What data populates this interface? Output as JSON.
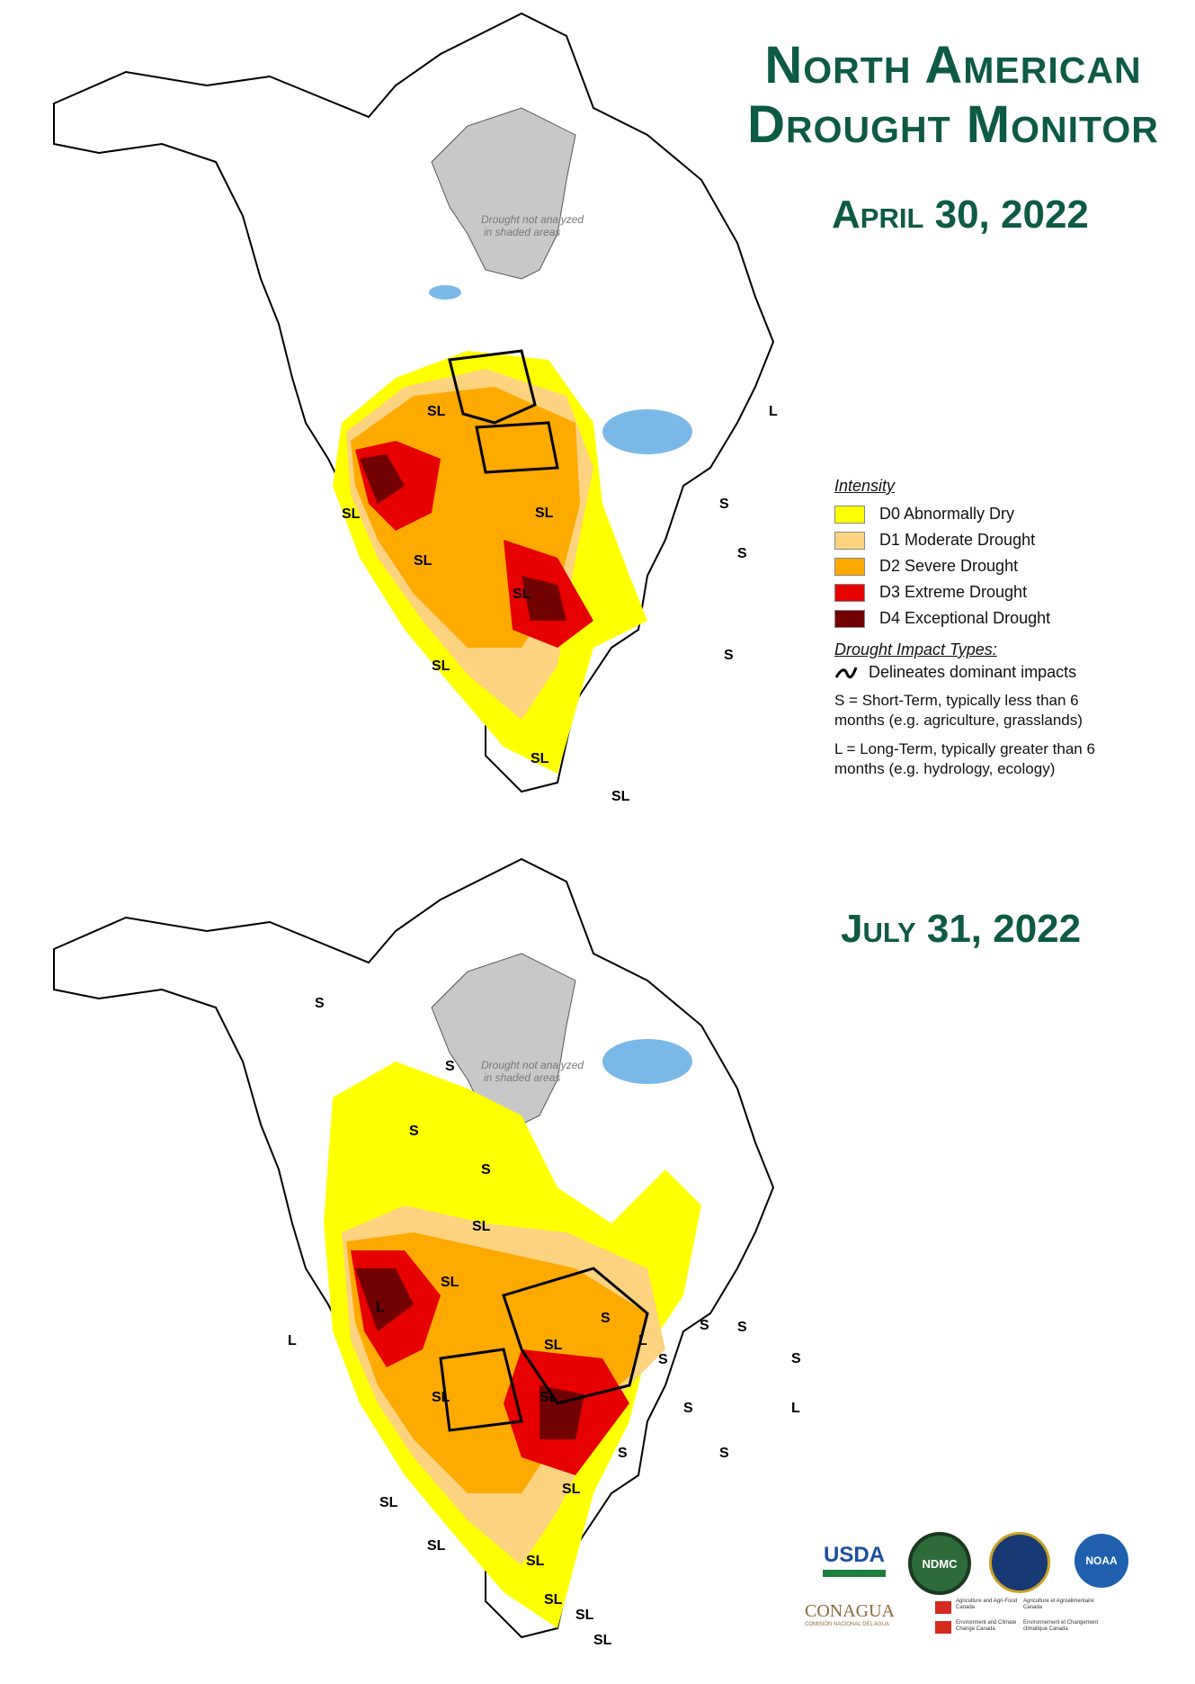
{
  "title": "North American Drought Monitor",
  "maps": [
    {
      "date": "April 30, 2022",
      "not_analyzed": [
        "Drought not analyzed",
        "in shaded areas"
      ],
      "impact_labels": [
        "SL",
        "SL",
        "SL",
        "SL",
        "SL",
        "SL",
        "SL",
        "SL",
        "S",
        "S",
        "S",
        "L"
      ]
    },
    {
      "date": "July 31, 2022",
      "not_analyzed": [
        "Drought not analyzed",
        "in shaded areas"
      ],
      "impact_labels": [
        "S",
        "S",
        "S",
        "S",
        "SL",
        "SL",
        "L",
        "SL",
        "L",
        "S",
        "L",
        "S",
        "S",
        "SL",
        "S",
        "S",
        "S",
        "S",
        "L",
        "S",
        "SL",
        "SL",
        "SL",
        "SL",
        "SL",
        "SL",
        "SL",
        "SL"
      ]
    }
  ],
  "legend": {
    "intensity_title": "Intensity",
    "categories": [
      {
        "label": "D0 Abnormally Dry",
        "color": "#ffff00"
      },
      {
        "label": "D1 Moderate Drought",
        "color": "#fcd37f"
      },
      {
        "label": "D2 Severe Drought",
        "color": "#ffaa00"
      },
      {
        "label": "D3 Extreme Drought",
        "color": "#e60000"
      },
      {
        "label": "D4 Exceptional Drought",
        "color": "#730000"
      }
    ],
    "impact_title": "Drought Impact Types:",
    "delineates": "Delineates dominant impacts",
    "short_term": "S = Short-Term, typically less than 6 months (e.g. agriculture, grasslands)",
    "long_term": "L = Long-Term, typically greater than 6 months (e.g. hydrology, ecology)"
  },
  "logos": {
    "usda": "USDA",
    "ndmc": "NDMC",
    "noaa": "NOAA",
    "conagua": "CONAGUA",
    "conagua_sub": "COMISIÓN NACIONAL DEL AGUA",
    "agr_en": "Agriculture and Agri-Food Canada",
    "agr_fr": "Agriculture et Agroalimentaire Canada",
    "env_en": "Environment and Climate Change Canada",
    "env_fr": "Environnement et Changement climatique Canada"
  },
  "colors": {
    "title": "#0d5a45",
    "water": "#7ab8e8",
    "shaded": "#c8c8c8"
  }
}
